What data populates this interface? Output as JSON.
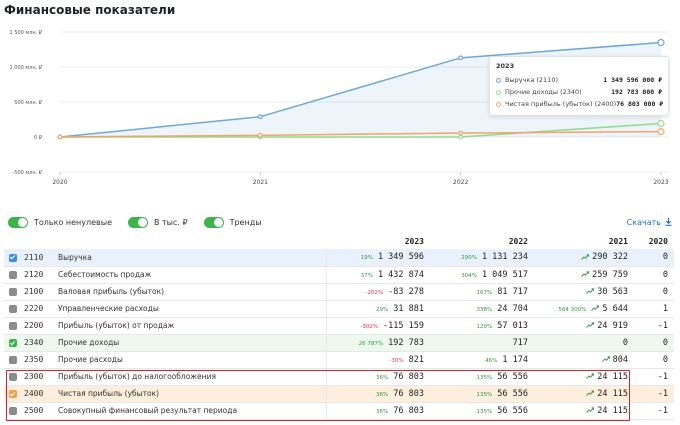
{
  "page": {
    "title": "Финансовые показатели"
  },
  "colors": {
    "revenue": "#6fa8d8",
    "other": "#8fdc8a",
    "profit": "#f4a46a",
    "accent": "#1f6fd1",
    "toggle": "#3bb54a"
  },
  "chart_data": {
    "type": "line",
    "x": [
      "2020",
      "2021",
      "2022",
      "2023"
    ],
    "ylim": [
      -500,
      1500
    ],
    "yticks": [
      -500,
      0,
      500,
      1000,
      1500
    ],
    "ytick_labels": [
      "-500 млн. ₽",
      "0 ₽",
      "500 млн. ₽",
      "1 000 млн. ₽",
      "1 500 млн. ₽"
    ],
    "series": [
      {
        "name": "Выручка (2110)",
        "values": [
          0,
          290.3,
          1131.2,
          1349.6
        ],
        "color": "#6fa8d8",
        "area": true
      },
      {
        "name": "Прочие доходы (2340)",
        "values": [
          0,
          0,
          0.7,
          192.8
        ],
        "color": "#8fdc8a",
        "area": false
      },
      {
        "name": "Чистая прибыль (убыток) (2400)",
        "values": [
          0,
          24.1,
          56.6,
          76.8
        ],
        "color": "#f4a46a",
        "area": false
      }
    ]
  },
  "tooltip": {
    "year": "2023",
    "rows": [
      {
        "name": "Выручка (2110)",
        "value": "1 349 596 000 ₽"
      },
      {
        "name": "Прочие доходы (2340)",
        "value": "192 783 000 ₽"
      },
      {
        "name": "Чистая прибыль (убыток) (2400)",
        "value": "76 803 000 ₽"
      }
    ]
  },
  "toolbar": {
    "nonzero_label": "Только ненулевые",
    "thousands_label": "В тыс. ₽",
    "trends_label": "Тренды",
    "download_label": "Скачать"
  },
  "table": {
    "headers": [
      "2023",
      "2022",
      "2021",
      "2020"
    ],
    "rows": [
      {
        "code": "2110",
        "name": "Выручка",
        "pct2023": "19%",
        "v2023": "1 349 596",
        "pct2022": "290%",
        "v2022": "1 131 234",
        "pct2021": "",
        "v2021": "290 322",
        "v2020": "0"
      },
      {
        "code": "2120",
        "name": "Себестоимость продаж",
        "pct2023": "37%",
        "v2023": "1 432 874",
        "pct2022": "304%",
        "v2022": "1 049 517",
        "pct2021": "",
        "v2021": "259 759",
        "v2020": "0"
      },
      {
        "code": "2100",
        "name": "Валовая прибыль (убыток)",
        "pct2023": "-202%",
        "v2023": "-83 278",
        "pct2022": "167%",
        "v2022": "81 717",
        "pct2021": "",
        "v2021": "30 563",
        "v2020": "0"
      },
      {
        "code": "2220",
        "name": "Управленческие расходы",
        "pct2023": "29%",
        "v2023": "31 881",
        "pct2022": "338%",
        "v2022": "24 704",
        "pct2021": "564 300%",
        "v2021": "5 644",
        "v2020": "1"
      },
      {
        "code": "2200",
        "name": "Прибыль (убыток) от продаж",
        "pct2023": "-302%",
        "v2023": "-115 159",
        "pct2022": "129%",
        "v2022": "57 013",
        "pct2021": "",
        "v2021": "24 919",
        "v2020": "-1"
      },
      {
        "code": "2340",
        "name": "Прочие доходы",
        "pct2023": "26 787%",
        "v2023": "192 783",
        "pct2022": "",
        "v2022": "717",
        "pct2021": "",
        "v2021": "0",
        "v2020": "0"
      },
      {
        "code": "2350",
        "name": "Прочие расходы",
        "pct2023": "-30%",
        "v2023": "821",
        "pct2022": "46%",
        "v2022": "1 174",
        "pct2021": "",
        "v2021": "804",
        "v2020": "0"
      },
      {
        "code": "2300",
        "name": "Прибыль (убыток) до налогообложения",
        "pct2023": "36%",
        "v2023": "76 803",
        "pct2022": "135%",
        "v2022": "56 556",
        "pct2021": "",
        "v2021": "24 115",
        "v2020": "-1"
      },
      {
        "code": "2400",
        "name": "Чистая прибыль (убыток)",
        "pct2023": "36%",
        "v2023": "76 803",
        "pct2022": "135%",
        "v2022": "56 556",
        "pct2021": "",
        "v2021": "24 115",
        "v2020": "-1"
      },
      {
        "code": "2500",
        "name": "Совокупный финансовый результат периода",
        "pct2023": "36%",
        "v2023": "76 803",
        "pct2022": "135%",
        "v2022": "56 556",
        "pct2021": "",
        "v2021": "24 115",
        "v2020": "-1"
      }
    ]
  }
}
